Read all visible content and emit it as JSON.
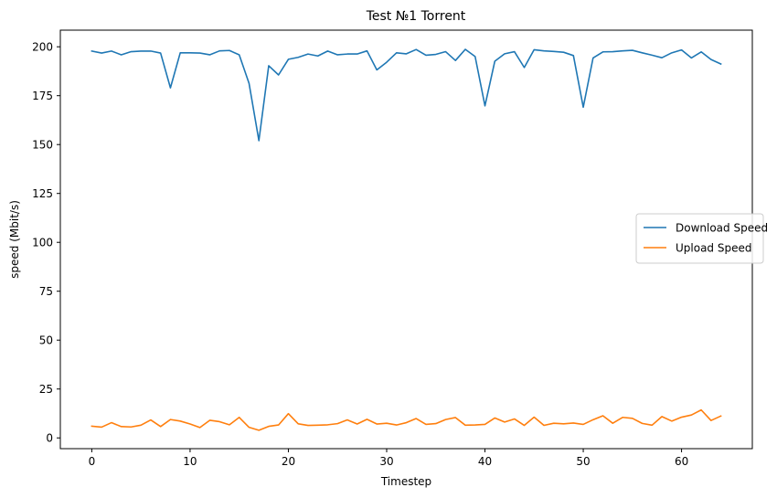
{
  "chart_data": {
    "type": "line",
    "title": "Test №1 Torrent",
    "xlabel": "Timestep",
    "ylabel": "speed (Mbit/s)",
    "xlim": [
      -3.2,
      67.2
    ],
    "ylim": [
      -5.5,
      208.5
    ],
    "xticks": [
      0,
      10,
      20,
      30,
      40,
      50,
      60
    ],
    "yticks": [
      0,
      25,
      50,
      75,
      100,
      125,
      150,
      175,
      200
    ],
    "grid": false,
    "legend_position": "center-right",
    "series": [
      {
        "name": "Download Speed",
        "color": "#1f77b4",
        "x": [
          0,
          1,
          2,
          3,
          4,
          5,
          6,
          7,
          8,
          9,
          10,
          11,
          12,
          13,
          14,
          15,
          16,
          17,
          18,
          19,
          20,
          21,
          22,
          23,
          24,
          25,
          26,
          27,
          28,
          29,
          30,
          31,
          32,
          33,
          34,
          35,
          36,
          37,
          38,
          39,
          40,
          41,
          42,
          43,
          44,
          45,
          46,
          47,
          48,
          49,
          50,
          51,
          52,
          53,
          54,
          55,
          56,
          57,
          58,
          59,
          60,
          61,
          62,
          63,
          64
        ],
        "values": [
          197.8,
          196.8,
          197.8,
          195.9,
          197.5,
          197.8,
          197.8,
          196.8,
          179.0,
          196.9,
          196.9,
          196.8,
          195.9,
          197.9,
          198.1,
          195.9,
          181.3,
          152.0,
          190.3,
          185.6,
          193.6,
          194.6,
          196.3,
          195.3,
          197.8,
          195.9,
          196.3,
          196.3,
          197.9,
          188.2,
          192.1,
          196.9,
          196.4,
          198.6,
          195.7,
          196.1,
          197.5,
          193.0,
          198.7,
          195.0,
          169.8,
          192.6,
          196.4,
          197.5,
          189.4,
          198.5,
          197.9,
          197.6,
          197.2,
          195.5,
          169.1,
          194.3,
          197.4,
          197.5,
          197.9,
          198.2,
          196.9,
          195.7,
          194.4,
          196.9,
          198.4,
          194.3,
          197.4,
          193.5,
          191.2
        ]
      },
      {
        "name": "Upload Speed",
        "color": "#ff7f0e",
        "x": [
          0,
          1,
          2,
          3,
          4,
          5,
          6,
          7,
          8,
          9,
          10,
          11,
          12,
          13,
          14,
          15,
          16,
          17,
          18,
          19,
          20,
          21,
          22,
          23,
          24,
          25,
          26,
          27,
          28,
          29,
          30,
          31,
          32,
          33,
          34,
          35,
          36,
          37,
          38,
          39,
          40,
          41,
          42,
          43,
          44,
          45,
          46,
          47,
          48,
          49,
          50,
          51,
          52,
          53,
          54,
          55,
          56,
          57,
          58,
          59,
          60,
          61,
          62,
          63,
          64
        ],
        "values": [
          6.0,
          5.5,
          7.8,
          5.8,
          5.6,
          6.5,
          9.2,
          5.8,
          9.4,
          8.6,
          7.1,
          5.3,
          9.0,
          8.3,
          6.7,
          10.5,
          5.4,
          3.9,
          5.9,
          6.6,
          12.4,
          7.2,
          6.4,
          6.5,
          6.7,
          7.3,
          9.2,
          7.1,
          9.5,
          7.1,
          7.5,
          6.6,
          7.8,
          9.9,
          6.9,
          7.3,
          9.4,
          10.4,
          6.5,
          6.6,
          6.9,
          10.2,
          8.1,
          9.7,
          6.4,
          10.6,
          6.4,
          7.5,
          7.2,
          7.6,
          6.9,
          9.3,
          11.3,
          7.5,
          10.5,
          10.0,
          7.4,
          6.5,
          10.9,
          8.6,
          10.6,
          11.7,
          14.3,
          8.9,
          11.2
        ]
      }
    ]
  }
}
